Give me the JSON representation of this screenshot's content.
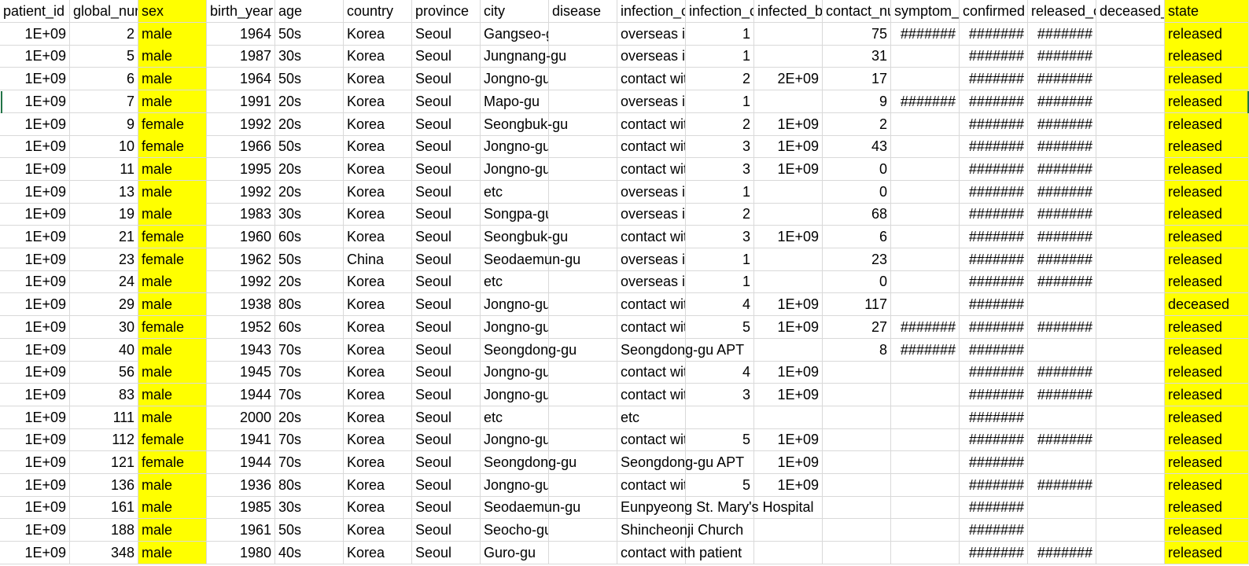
{
  "columns": [
    "patient_id",
    "global_num",
    "sex",
    "birth_year",
    "age",
    "country",
    "province",
    "city",
    "disease",
    "infection_case",
    "infection_order",
    "infected_by",
    "contact_number",
    "symptom_onset_date",
    "confirmed_date",
    "released_date",
    "deceased_date",
    "state"
  ],
  "header_display": [
    "patient_id",
    "global_nur",
    "sex",
    "birth_year",
    "age",
    "country",
    "province",
    "city",
    "disease",
    "infection_c",
    "infection_c",
    "infected_b",
    "contact_nu",
    "symptom_",
    "confirmed",
    "released_c",
    "deceased_",
    "state"
  ],
  "highlight_color": "#ffff00",
  "selection_color": "#217346",
  "rows": [
    [
      "1E+09",
      "2",
      "male",
      "1964",
      "50s",
      "Korea",
      "Seoul",
      "Gangseo-gu",
      "",
      "overseas in",
      "1",
      "",
      "75",
      "#######",
      "#######",
      "#######",
      "",
      "released"
    ],
    [
      "1E+09",
      "5",
      "male",
      "1987",
      "30s",
      "Korea",
      "Seoul",
      "Jungnang-gu",
      "",
      "overseas in",
      "1",
      "",
      "31",
      "",
      "#######",
      "#######",
      "",
      "released"
    ],
    [
      "1E+09",
      "6",
      "male",
      "1964",
      "50s",
      "Korea",
      "Seoul",
      "Jongno-gu",
      "",
      "contact wit",
      "2",
      "2E+09",
      "17",
      "",
      "#######",
      "#######",
      "",
      "released"
    ],
    [
      "1E+09",
      "7",
      "male",
      "1991",
      "20s",
      "Korea",
      "Seoul",
      "Mapo-gu",
      "",
      "overseas in",
      "1",
      "",
      "9",
      "#######",
      "#######",
      "#######",
      "",
      "released"
    ],
    [
      "1E+09",
      "9",
      "female",
      "1992",
      "20s",
      "Korea",
      "Seoul",
      "Seongbuk-gu",
      "",
      "contact wit",
      "2",
      "1E+09",
      "2",
      "",
      "#######",
      "#######",
      "",
      "released"
    ],
    [
      "1E+09",
      "10",
      "female",
      "1966",
      "50s",
      "Korea",
      "Seoul",
      "Jongno-gu",
      "",
      "contact wit",
      "3",
      "1E+09",
      "43",
      "",
      "#######",
      "#######",
      "",
      "released"
    ],
    [
      "1E+09",
      "11",
      "male",
      "1995",
      "20s",
      "Korea",
      "Seoul",
      "Jongno-gu",
      "",
      "contact wit",
      "3",
      "1E+09",
      "0",
      "",
      "#######",
      "#######",
      "",
      "released"
    ],
    [
      "1E+09",
      "13",
      "male",
      "1992",
      "20s",
      "Korea",
      "Seoul",
      "etc",
      "",
      "overseas in",
      "1",
      "",
      "0",
      "",
      "#######",
      "#######",
      "",
      "released"
    ],
    [
      "1E+09",
      "19",
      "male",
      "1983",
      "30s",
      "Korea",
      "Seoul",
      "Songpa-gu",
      "",
      "overseas in",
      "2",
      "",
      "68",
      "",
      "#######",
      "#######",
      "",
      "released"
    ],
    [
      "1E+09",
      "21",
      "female",
      "1960",
      "60s",
      "Korea",
      "Seoul",
      "Seongbuk-gu",
      "",
      "contact wit",
      "3",
      "1E+09",
      "6",
      "",
      "#######",
      "#######",
      "",
      "released"
    ],
    [
      "1E+09",
      "23",
      "female",
      "1962",
      "50s",
      "China",
      "Seoul",
      "Seodaemun-gu",
      "",
      "overseas in",
      "1",
      "",
      "23",
      "",
      "#######",
      "#######",
      "",
      "released"
    ],
    [
      "1E+09",
      "24",
      "male",
      "1992",
      "20s",
      "Korea",
      "Seoul",
      "etc",
      "",
      "overseas in",
      "1",
      "",
      "0",
      "",
      "#######",
      "#######",
      "",
      "released"
    ],
    [
      "1E+09",
      "29",
      "male",
      "1938",
      "80s",
      "Korea",
      "Seoul",
      "Jongno-gu",
      "",
      "contact wit",
      "4",
      "1E+09",
      "117",
      "",
      "#######",
      "",
      "",
      "deceased"
    ],
    [
      "1E+09",
      "30",
      "female",
      "1952",
      "60s",
      "Korea",
      "Seoul",
      "Jongno-gu",
      "",
      "contact wit",
      "5",
      "1E+09",
      "27",
      "#######",
      "#######",
      "#######",
      "",
      "released"
    ],
    [
      "1E+09",
      "40",
      "male",
      "1943",
      "70s",
      "Korea",
      "Seoul",
      "Seongdong-gu",
      "",
      "Seongdong-gu APT",
      "",
      "",
      "8",
      "#######",
      "#######",
      "",
      "",
      "released"
    ],
    [
      "1E+09",
      "56",
      "male",
      "1945",
      "70s",
      "Korea",
      "Seoul",
      "Jongno-gu",
      "",
      "contact wit",
      "4",
      "1E+09",
      "",
      "",
      "#######",
      "#######",
      "",
      "released"
    ],
    [
      "1E+09",
      "83",
      "male",
      "1944",
      "70s",
      "Korea",
      "Seoul",
      "Jongno-gu",
      "",
      "contact wit",
      "3",
      "1E+09",
      "",
      "",
      "#######",
      "#######",
      "",
      "released"
    ],
    [
      "1E+09",
      "111",
      "male",
      "2000",
      "20s",
      "Korea",
      "Seoul",
      "etc",
      "",
      "etc",
      "",
      "",
      "",
      "",
      "#######",
      "",
      "",
      "released"
    ],
    [
      "1E+09",
      "112",
      "female",
      "1941",
      "70s",
      "Korea",
      "Seoul",
      "Jongno-gu",
      "",
      "contact wit",
      "5",
      "1E+09",
      "",
      "",
      "#######",
      "#######",
      "",
      "released"
    ],
    [
      "1E+09",
      "121",
      "female",
      "1944",
      "70s",
      "Korea",
      "Seoul",
      "Seongdong-gu",
      "",
      "Seongdong-gu APT",
      "",
      "1E+09",
      "",
      "",
      "#######",
      "",
      "",
      "released"
    ],
    [
      "1E+09",
      "136",
      "male",
      "1936",
      "80s",
      "Korea",
      "Seoul",
      "Jongno-gu",
      "",
      "contact wit",
      "5",
      "1E+09",
      "",
      "",
      "#######",
      "#######",
      "",
      "released"
    ],
    [
      "1E+09",
      "161",
      "male",
      "1985",
      "30s",
      "Korea",
      "Seoul",
      "Seodaemun-gu",
      "",
      "Eunpyeong St. Mary's Hospital",
      "",
      "",
      "",
      "",
      "#######",
      "",
      "",
      "released"
    ],
    [
      "1E+09",
      "188",
      "male",
      "1961",
      "50s",
      "Korea",
      "Seoul",
      "Seocho-gu",
      "",
      "Shincheonji Church",
      "",
      "",
      "",
      "",
      "#######",
      "",
      "",
      "released"
    ],
    [
      "1E+09",
      "348",
      "male",
      "1980",
      "40s",
      "Korea",
      "Seoul",
      "Guro-gu",
      "",
      "contact with patient",
      "",
      "",
      "",
      "",
      "#######",
      "#######",
      "",
      "released"
    ]
  ]
}
